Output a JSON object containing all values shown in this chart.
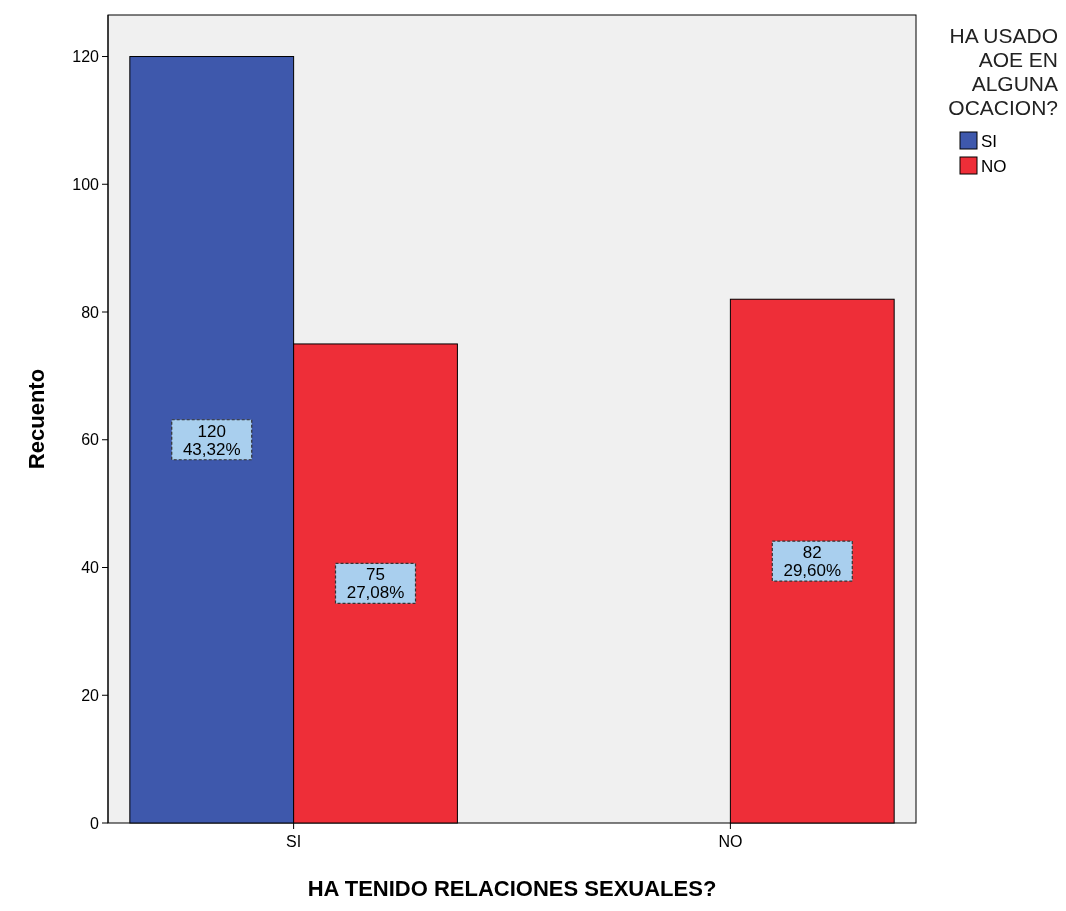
{
  "chart_data": {
    "type": "bar",
    "xlabel": "HA TENIDO RELACIONES SEXUALES?",
    "ylabel": "Recuento",
    "legend_title": "HA USADO AOE EN ALGUNA OCACION?",
    "categories": [
      "SI",
      "NO"
    ],
    "series": [
      {
        "name": "SI",
        "color": "#3e58ac",
        "values": [
          120,
          null
        ],
        "value_labels": [
          "120\n43,32%",
          null
        ]
      },
      {
        "name": "NO",
        "color": "#ee2e38",
        "values": [
          75,
          82
        ],
        "value_labels": [
          "75\n27,08%",
          "82\n29,60%"
        ]
      }
    ],
    "ylim": [
      0,
      126.5
    ],
    "yticks": [
      0,
      20,
      40,
      60,
      80,
      100,
      120
    ],
    "grid": false,
    "legend": "right"
  }
}
